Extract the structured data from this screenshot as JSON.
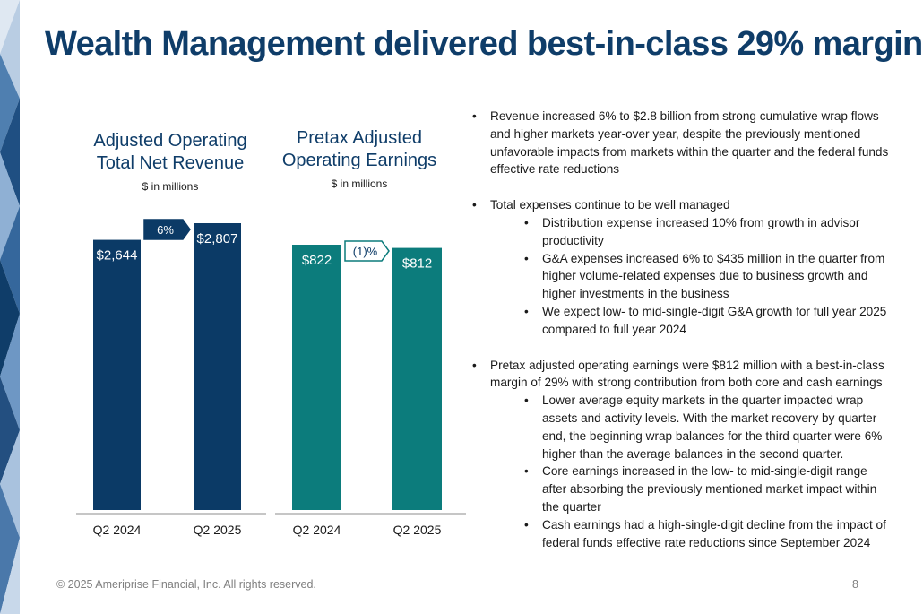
{
  "title": "Wealth Management delivered best-in-class 29% margin",
  "colors": {
    "title": "#0f3d69",
    "bar_navy": "#0b3a66",
    "bar_teal": "#0c7c7c",
    "deco_dark": "#0f3d69",
    "deco_light": "#7fa6cf"
  },
  "chart_data": [
    {
      "type": "bar",
      "title": "Adjusted Operating Total Net Revenue",
      "title_lines": [
        "Adjusted Operating",
        "Total Net Revenue"
      ],
      "subtitle": "$ in millions",
      "categories": [
        "Q2 2024",
        "Q2 2025"
      ],
      "values": [
        2644,
        2807
      ],
      "value_labels": [
        "$2,644",
        "$2,807"
      ],
      "change_label": "6%",
      "color": "#0b3a66",
      "ylim": [
        0,
        2807
      ]
    },
    {
      "type": "bar",
      "title": "Pretax Adjusted Operating Earnings",
      "title_lines": [
        "Pretax Adjusted",
        "Operating Earnings"
      ],
      "subtitle": "$ in millions",
      "categories": [
        "Q2 2024",
        "Q2 2025"
      ],
      "values": [
        822,
        812
      ],
      "value_labels": [
        "$822",
        "$812"
      ],
      "change_label": "(1)%",
      "color": "#0c7c7c",
      "ylim": [
        0,
        822
      ]
    }
  ],
  "bullets": [
    {
      "text": "Revenue increased 6% to $2.8 billion from strong cumulative wrap flows and higher markets year-over year, despite the previously mentioned unfavorable impacts from markets within the quarter and the federal funds effective rate reductions",
      "sub": []
    },
    {
      "text": "Total expenses continue to be well managed",
      "sub": [
        "Distribution expense increased 10% from growth in advisor productivity",
        "G&A expenses increased 6% to $435 million in the quarter from higher volume-related expenses due to business growth and higher investments in the business",
        "We expect low- to mid-single-digit G&A growth for full year 2025 compared to full year 2024"
      ]
    },
    {
      "text": "Pretax adjusted operating earnings were $812 million with a best-in-class margin of 29% with strong contribution from both core and cash earnings",
      "sub": [
        "Lower average equity markets in the quarter impacted wrap assets and activity levels. With the market recovery by quarter end, the beginning wrap balances for the third quarter were 6% higher than the average balances in the second quarter.",
        "Core earnings increased in the low- to mid-single-digit range after absorbing the previously mentioned market impact within the quarter",
        "Cash earnings had a high-single-digit decline from the impact of federal funds effective rate reductions since September 2024"
      ]
    }
  ],
  "footer": "© 2025 Ameriprise Financial, Inc. All rights reserved.",
  "page_number": "8"
}
